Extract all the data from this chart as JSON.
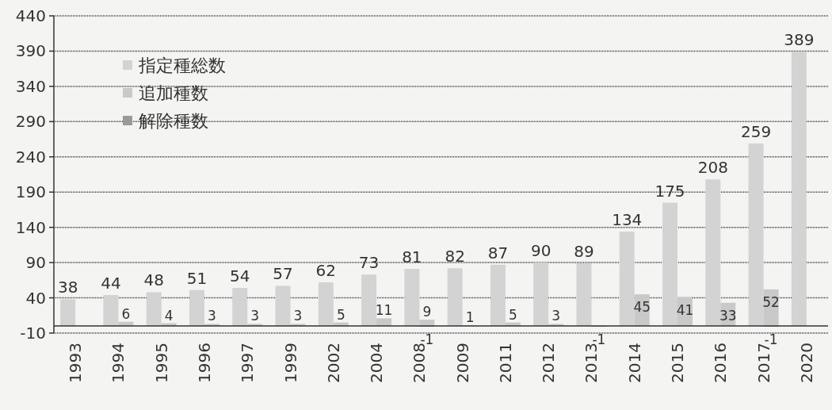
{
  "chart_data": {
    "type": "bar",
    "categories": [
      "1993",
      "1994",
      "1995",
      "1996",
      "1997",
      "1999",
      "2002",
      "2004",
      "2008",
      "2009",
      "2011",
      "2012",
      "2013",
      "2014",
      "2015",
      "2016",
      "2017",
      "2020"
    ],
    "series": [
      {
        "name": "指定種総数",
        "color": "#d3d3d3",
        "values": [
          38,
          44,
          48,
          51,
          54,
          57,
          62,
          73,
          81,
          82,
          87,
          90,
          89,
          134,
          175,
          208,
          259,
          389
        ]
      },
      {
        "name": "追加種数",
        "color": "#c9c9c9",
        "values": [
          null,
          6,
          4,
          3,
          3,
          3,
          5,
          11,
          9,
          1,
          5,
          3,
          null,
          45,
          41,
          33,
          52,
          null
        ]
      },
      {
        "name": "解除種数",
        "color": "#9a9a9a",
        "values": [
          null,
          null,
          null,
          null,
          null,
          null,
          null,
          null,
          -1,
          null,
          null,
          null,
          -1,
          null,
          null,
          null,
          -1,
          null
        ]
      }
    ],
    "ylim": [
      -10,
      440
    ],
    "yticks": [
      -10,
      40,
      90,
      140,
      190,
      240,
      290,
      340,
      390,
      440
    ],
    "grid": "y",
    "legend": "top left",
    "data_labels": true
  }
}
